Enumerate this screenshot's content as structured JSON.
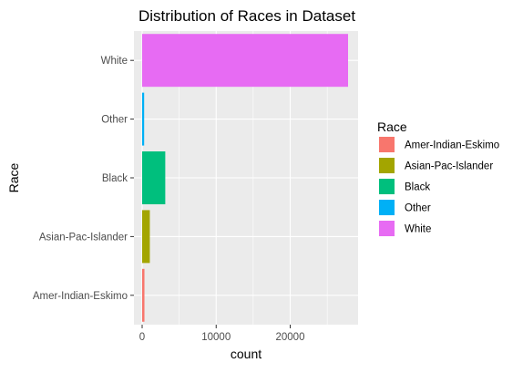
{
  "chart_data": {
    "type": "bar",
    "orientation": "horizontal",
    "title": "Distribution of Races in Dataset",
    "xlabel": "count",
    "ylabel": "Race",
    "categories": [
      "Amer-Indian-Eskimo",
      "Asian-Pac-Islander",
      "Black",
      "Other",
      "White"
    ],
    "values": [
      311,
      1039,
      3124,
      271,
      27816
    ],
    "xlim": [
      0,
      27816
    ],
    "xticks": [
      0,
      10000,
      20000
    ],
    "grid": true,
    "legend": {
      "title": "Race",
      "position": "right",
      "entries": [
        "Amer-Indian-Eskimo",
        "Asian-Pac-Islander",
        "Black",
        "Other",
        "White"
      ]
    },
    "colors": [
      "#F8766D",
      "#A3A500",
      "#00BF7D",
      "#00B0F6",
      "#E76BF3"
    ],
    "panel_background": "#EBEBEB",
    "grid_color": "#FFFFFF"
  }
}
